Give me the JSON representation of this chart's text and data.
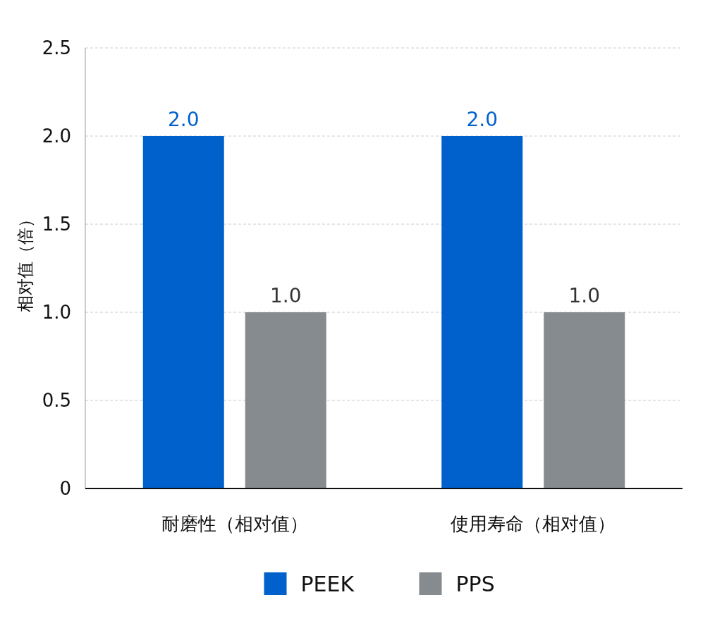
{
  "chart_data": {
    "type": "bar",
    "ylabel": "相对值（倍）",
    "categories": [
      "耐磨性（相对值）",
      "使用寿命（相对值）"
    ],
    "series": [
      {
        "name": "PEEK",
        "color": "#0060cc",
        "values": [
          2.0,
          2.0
        ],
        "value_labels": [
          "2.0",
          "2.0"
        ]
      },
      {
        "name": "PPS",
        "color": "#868b8f",
        "values": [
          1.0,
          1.0
        ],
        "value_labels": [
          "1.0",
          "1.0"
        ]
      }
    ],
    "ylim": [
      0,
      2.5
    ],
    "yticks": [
      0,
      {
        "value": 0.5,
        "label": "0.5"
      },
      {
        "value": 1,
        "label": "1.0"
      },
      {
        "value": 1.5,
        "label": "1.5"
      },
      {
        "value": 2,
        "label": "2.0"
      },
      {
        "value": 2.5,
        "label": "2.5"
      }
    ],
    "grid": "y",
    "legend": "bottom"
  }
}
